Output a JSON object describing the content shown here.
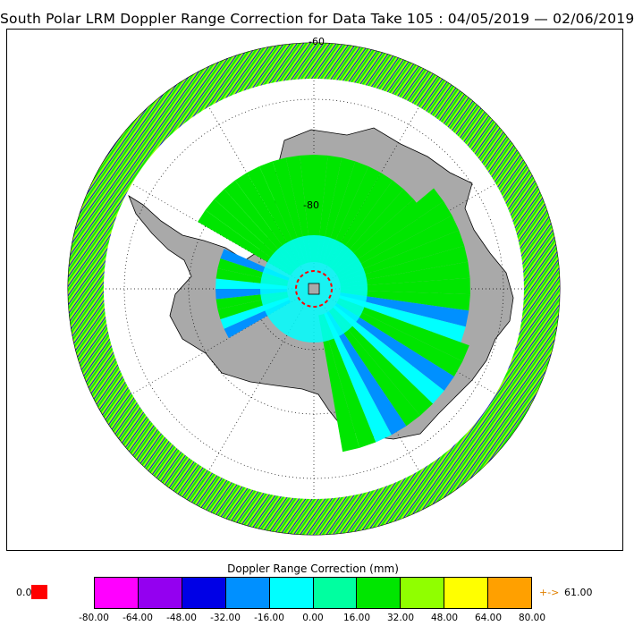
{
  "title": "South Polar LRM Doppler Range Correction for Data Take 105 : 04/05/2019 — 02/06/2019",
  "map": {
    "lat_labels": [
      "-60",
      "-80"
    ],
    "land_color": "#a9a9a9",
    "ocean_color": "#ffffff",
    "graticule_color": "#000000",
    "pole_marker_color": "#ff0000"
  },
  "colorbar": {
    "title": "Doppler Range Correction (mm)",
    "colors": [
      "#ff00ff",
      "#9400f0",
      "#0000e6",
      "#0090ff",
      "#00ffff",
      "#00ffa0",
      "#00e600",
      "#90ff00",
      "#ffff00",
      "#ffa000"
    ],
    "ticks": [
      "-80.00",
      "-64.00",
      "-48.00",
      "-32.00",
      "-16.00",
      "0.00",
      "16.00",
      "32.00",
      "48.00",
      "64.00",
      "80.00"
    ],
    "underflow_label": "0.0",
    "underflow_color": "#ff0000",
    "overflow_arrow": "+->",
    "overflow_label": "61.00",
    "overflow_color": "#e08000"
  }
}
